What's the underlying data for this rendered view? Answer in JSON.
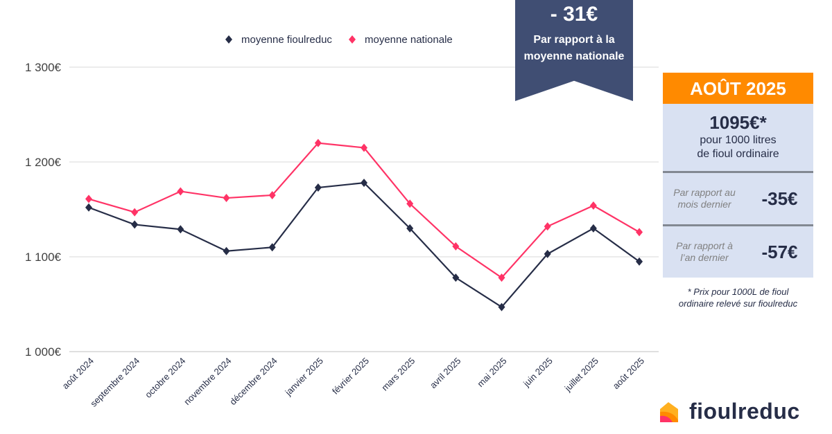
{
  "chart_data": {
    "type": "line",
    "categories": [
      "août 2024",
      "septembre 2024",
      "octobre 2024",
      "novembre 2024",
      "décembre 2024",
      "janvier 2025",
      "février 2025",
      "mars 2025",
      "avril 2025",
      "mai 2025",
      "juin 2025",
      "juillet 2025",
      "août 2025"
    ],
    "series": [
      {
        "name": "moyenne fioulreduc",
        "color": "#262d47",
        "values": [
          1152,
          1134,
          1129,
          1106,
          1110,
          1173,
          1178,
          1130,
          1078,
          1047,
          1103,
          1130,
          1095
        ]
      },
      {
        "name": "moyenne nationale",
        "color": "#ff3366",
        "values": [
          1161,
          1147,
          1169,
          1162,
          1165,
          1220,
          1215,
          1156,
          1111,
          1078,
          1132,
          1154,
          1126
        ]
      }
    ],
    "yticks": [
      "1 000€",
      "1 100€",
      "1 200€",
      "1 300€"
    ],
    "ytick_values": [
      1000,
      1100,
      1200,
      1300
    ],
    "ylim": [
      1000,
      1300
    ],
    "grid": true,
    "legend": "top",
    "marker": "diamond"
  },
  "ribbon": {
    "value": "- 31€",
    "line1": "Par rapport à la",
    "line2": "moyenne nationale",
    "color": "#404e73"
  },
  "card": {
    "header": "AOÛT 2025",
    "price": "1095€*",
    "desc1": "pour 1000 litres",
    "desc2": "de fioul ordinaire",
    "month_label1": "Par rapport au",
    "month_label2": "mois dernier",
    "month_value": "-35€",
    "year_label1": "Par rapport à",
    "year_label2": "l’an dernier",
    "year_value": "-57€",
    "accent": "#ff8a00"
  },
  "note": {
    "line1": "* Prix pour 1000L de fioul",
    "line2": "ordinaire relevé sur fioulreduc"
  },
  "logo": {
    "text": "fioulreduc"
  }
}
